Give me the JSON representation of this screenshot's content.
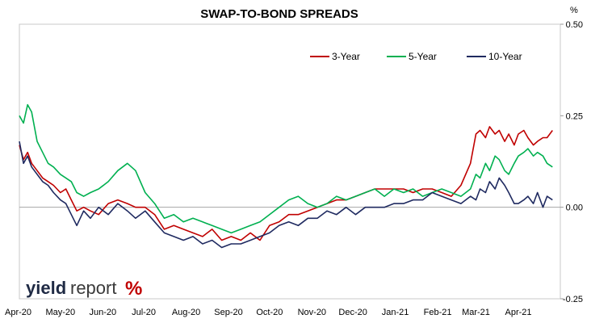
{
  "chart_data": {
    "type": "line",
    "title": "SWAP-TO-BOND SPREADS",
    "ylabel": "%",
    "ylim": [
      -0.25,
      0.5
    ],
    "yticks": [
      "0.50",
      "0.25",
      "0.00",
      "-0.25"
    ],
    "ytick_values": [
      0.5,
      0.25,
      0.0,
      -0.25
    ],
    "xlim": [
      "2020-04-01",
      "2021-04-30"
    ],
    "x_tick_labels": [
      "Apr-20",
      "May-20",
      "Jun-20",
      "Jul-20",
      "Aug-20",
      "Sep-20",
      "Oct-20",
      "Nov-20",
      "Dec-20",
      "Jan-21",
      "Feb-21",
      "Mar-21",
      "Apr-21"
    ],
    "x_tick_dates": [
      "2020-04-01",
      "2020-05-01",
      "2020-06-01",
      "2020-07-01",
      "2020-08-01",
      "2020-09-01",
      "2020-10-01",
      "2020-11-01",
      "2020-12-01",
      "2021-01-01",
      "2021-02-01",
      "2021-03-01",
      "2021-04-01"
    ],
    "grid": false,
    "legend_position": "top-right",
    "series": [
      {
        "name": "3-Year",
        "color": "#c00000",
        "points": [
          [
            "2020-04-01",
            0.17
          ],
          [
            "2020-04-04",
            0.13
          ],
          [
            "2020-04-07",
            0.15
          ],
          [
            "2020-04-10",
            0.12
          ],
          [
            "2020-04-14",
            0.1
          ],
          [
            "2020-04-18",
            0.08
          ],
          [
            "2020-04-22",
            0.07
          ],
          [
            "2020-04-26",
            0.06
          ],
          [
            "2020-05-01",
            0.04
          ],
          [
            "2020-05-05",
            0.05
          ],
          [
            "2020-05-09",
            0.02
          ],
          [
            "2020-05-13",
            -0.01
          ],
          [
            "2020-05-18",
            0.0
          ],
          [
            "2020-05-23",
            -0.01
          ],
          [
            "2020-05-29",
            -0.02
          ],
          [
            "2020-06-05",
            0.01
          ],
          [
            "2020-06-12",
            0.02
          ],
          [
            "2020-06-19",
            0.01
          ],
          [
            "2020-06-25",
            0.0
          ],
          [
            "2020-07-02",
            0.0
          ],
          [
            "2020-07-09",
            -0.02
          ],
          [
            "2020-07-16",
            -0.06
          ],
          [
            "2020-07-23",
            -0.05
          ],
          [
            "2020-07-30",
            -0.06
          ],
          [
            "2020-08-06",
            -0.07
          ],
          [
            "2020-08-13",
            -0.08
          ],
          [
            "2020-08-20",
            -0.06
          ],
          [
            "2020-08-27",
            -0.09
          ],
          [
            "2020-09-03",
            -0.08
          ],
          [
            "2020-09-10",
            -0.09
          ],
          [
            "2020-09-17",
            -0.07
          ],
          [
            "2020-09-24",
            -0.09
          ],
          [
            "2020-10-01",
            -0.05
          ],
          [
            "2020-10-08",
            -0.04
          ],
          [
            "2020-10-15",
            -0.02
          ],
          [
            "2020-10-22",
            -0.02
          ],
          [
            "2020-10-29",
            -0.01
          ],
          [
            "2020-11-05",
            0.0
          ],
          [
            "2020-11-12",
            0.01
          ],
          [
            "2020-11-19",
            0.02
          ],
          [
            "2020-11-26",
            0.02
          ],
          [
            "2020-12-03",
            0.03
          ],
          [
            "2020-12-10",
            0.04
          ],
          [
            "2020-12-17",
            0.05
          ],
          [
            "2020-12-24",
            0.05
          ],
          [
            "2020-12-31",
            0.05
          ],
          [
            "2021-01-07",
            0.05
          ],
          [
            "2021-01-14",
            0.04
          ],
          [
            "2021-01-21",
            0.05
          ],
          [
            "2021-01-28",
            0.05
          ],
          [
            "2021-02-04",
            0.04
          ],
          [
            "2021-02-11",
            0.03
          ],
          [
            "2021-02-18",
            0.06
          ],
          [
            "2021-02-25",
            0.12
          ],
          [
            "2021-03-01",
            0.2
          ],
          [
            "2021-03-04",
            0.21
          ],
          [
            "2021-03-08",
            0.19
          ],
          [
            "2021-03-11",
            0.22
          ],
          [
            "2021-03-15",
            0.2
          ],
          [
            "2021-03-18",
            0.21
          ],
          [
            "2021-03-22",
            0.18
          ],
          [
            "2021-03-25",
            0.2
          ],
          [
            "2021-03-29",
            0.17
          ],
          [
            "2021-04-01",
            0.2
          ],
          [
            "2021-04-05",
            0.21
          ],
          [
            "2021-04-08",
            0.19
          ],
          [
            "2021-04-12",
            0.17
          ],
          [
            "2021-04-15",
            0.18
          ],
          [
            "2021-04-19",
            0.19
          ],
          [
            "2021-04-22",
            0.19
          ],
          [
            "2021-04-26",
            0.21
          ]
        ]
      },
      {
        "name": "5-Year",
        "color": "#00b050",
        "points": [
          [
            "2020-04-01",
            0.25
          ],
          [
            "2020-04-04",
            0.23
          ],
          [
            "2020-04-07",
            0.28
          ],
          [
            "2020-04-10",
            0.26
          ],
          [
            "2020-04-14",
            0.18
          ],
          [
            "2020-04-18",
            0.15
          ],
          [
            "2020-04-22",
            0.12
          ],
          [
            "2020-04-26",
            0.11
          ],
          [
            "2020-05-01",
            0.09
          ],
          [
            "2020-05-05",
            0.08
          ],
          [
            "2020-05-09",
            0.07
          ],
          [
            "2020-05-13",
            0.04
          ],
          [
            "2020-05-18",
            0.03
          ],
          [
            "2020-05-23",
            0.04
          ],
          [
            "2020-05-29",
            0.05
          ],
          [
            "2020-06-05",
            0.07
          ],
          [
            "2020-06-12",
            0.1
          ],
          [
            "2020-06-19",
            0.12
          ],
          [
            "2020-06-25",
            0.1
          ],
          [
            "2020-07-02",
            0.04
          ],
          [
            "2020-07-09",
            0.01
          ],
          [
            "2020-07-16",
            -0.03
          ],
          [
            "2020-07-23",
            -0.02
          ],
          [
            "2020-07-30",
            -0.04
          ],
          [
            "2020-08-06",
            -0.03
          ],
          [
            "2020-08-13",
            -0.04
          ],
          [
            "2020-08-20",
            -0.05
          ],
          [
            "2020-08-27",
            -0.06
          ],
          [
            "2020-09-03",
            -0.07
          ],
          [
            "2020-09-10",
            -0.06
          ],
          [
            "2020-09-17",
            -0.05
          ],
          [
            "2020-09-24",
            -0.04
          ],
          [
            "2020-10-01",
            -0.02
          ],
          [
            "2020-10-08",
            0.0
          ],
          [
            "2020-10-15",
            0.02
          ],
          [
            "2020-10-22",
            0.03
          ],
          [
            "2020-10-29",
            0.01
          ],
          [
            "2020-11-05",
            0.0
          ],
          [
            "2020-11-12",
            0.01
          ],
          [
            "2020-11-19",
            0.03
          ],
          [
            "2020-11-26",
            0.02
          ],
          [
            "2020-12-03",
            0.03
          ],
          [
            "2020-12-10",
            0.04
          ],
          [
            "2020-12-17",
            0.05
          ],
          [
            "2020-12-24",
            0.03
          ],
          [
            "2020-12-31",
            0.05
          ],
          [
            "2021-01-07",
            0.04
          ],
          [
            "2021-01-14",
            0.05
          ],
          [
            "2021-01-21",
            0.03
          ],
          [
            "2021-01-28",
            0.04
          ],
          [
            "2021-02-04",
            0.05
          ],
          [
            "2021-02-11",
            0.04
          ],
          [
            "2021-02-18",
            0.03
          ],
          [
            "2021-02-25",
            0.05
          ],
          [
            "2021-03-01",
            0.09
          ],
          [
            "2021-03-04",
            0.08
          ],
          [
            "2021-03-08",
            0.12
          ],
          [
            "2021-03-11",
            0.1
          ],
          [
            "2021-03-15",
            0.14
          ],
          [
            "2021-03-18",
            0.13
          ],
          [
            "2021-03-22",
            0.1
          ],
          [
            "2021-03-25",
            0.09
          ],
          [
            "2021-03-29",
            0.12
          ],
          [
            "2021-04-01",
            0.14
          ],
          [
            "2021-04-05",
            0.15
          ],
          [
            "2021-04-08",
            0.16
          ],
          [
            "2021-04-12",
            0.14
          ],
          [
            "2021-04-15",
            0.15
          ],
          [
            "2021-04-19",
            0.14
          ],
          [
            "2021-04-22",
            0.12
          ],
          [
            "2021-04-26",
            0.11
          ]
        ]
      },
      {
        "name": "10-Year",
        "color": "#1f2a60",
        "points": [
          [
            "2020-04-01",
            0.18
          ],
          [
            "2020-04-04",
            0.12
          ],
          [
            "2020-04-07",
            0.14
          ],
          [
            "2020-04-10",
            0.11
          ],
          [
            "2020-04-14",
            0.09
          ],
          [
            "2020-04-18",
            0.07
          ],
          [
            "2020-04-22",
            0.06
          ],
          [
            "2020-04-26",
            0.04
          ],
          [
            "2020-05-01",
            0.02
          ],
          [
            "2020-05-05",
            0.01
          ],
          [
            "2020-05-09",
            -0.02
          ],
          [
            "2020-05-13",
            -0.05
          ],
          [
            "2020-05-18",
            -0.01
          ],
          [
            "2020-05-23",
            -0.03
          ],
          [
            "2020-05-29",
            0.0
          ],
          [
            "2020-06-05",
            -0.02
          ],
          [
            "2020-06-12",
            0.01
          ],
          [
            "2020-06-19",
            -0.01
          ],
          [
            "2020-06-25",
            -0.03
          ],
          [
            "2020-07-02",
            -0.01
          ],
          [
            "2020-07-09",
            -0.04
          ],
          [
            "2020-07-16",
            -0.07
          ],
          [
            "2020-07-23",
            -0.08
          ],
          [
            "2020-07-30",
            -0.09
          ],
          [
            "2020-08-06",
            -0.08
          ],
          [
            "2020-08-13",
            -0.1
          ],
          [
            "2020-08-20",
            -0.09
          ],
          [
            "2020-08-27",
            -0.11
          ],
          [
            "2020-09-03",
            -0.1
          ],
          [
            "2020-09-10",
            -0.1
          ],
          [
            "2020-09-17",
            -0.09
          ],
          [
            "2020-09-24",
            -0.08
          ],
          [
            "2020-10-01",
            -0.07
          ],
          [
            "2020-10-08",
            -0.05
          ],
          [
            "2020-10-15",
            -0.04
          ],
          [
            "2020-10-22",
            -0.05
          ],
          [
            "2020-10-29",
            -0.03
          ],
          [
            "2020-11-05",
            -0.03
          ],
          [
            "2020-11-12",
            -0.01
          ],
          [
            "2020-11-19",
            -0.02
          ],
          [
            "2020-11-26",
            0.0
          ],
          [
            "2020-12-03",
            -0.02
          ],
          [
            "2020-12-10",
            0.0
          ],
          [
            "2020-12-17",
            0.0
          ],
          [
            "2020-12-24",
            0.0
          ],
          [
            "2020-12-31",
            0.01
          ],
          [
            "2021-01-07",
            0.01
          ],
          [
            "2021-01-14",
            0.02
          ],
          [
            "2021-01-21",
            0.02
          ],
          [
            "2021-01-28",
            0.04
          ],
          [
            "2021-02-04",
            0.03
          ],
          [
            "2021-02-11",
            0.02
          ],
          [
            "2021-02-18",
            0.01
          ],
          [
            "2021-02-25",
            0.03
          ],
          [
            "2021-03-01",
            0.02
          ],
          [
            "2021-03-04",
            0.05
          ],
          [
            "2021-03-08",
            0.04
          ],
          [
            "2021-03-11",
            0.07
          ],
          [
            "2021-03-15",
            0.05
          ],
          [
            "2021-03-18",
            0.08
          ],
          [
            "2021-03-22",
            0.06
          ],
          [
            "2021-03-25",
            0.04
          ],
          [
            "2021-03-29",
            0.01
          ],
          [
            "2021-04-01",
            0.01
          ],
          [
            "2021-04-05",
            0.02
          ],
          [
            "2021-04-08",
            0.03
          ],
          [
            "2021-04-12",
            0.01
          ],
          [
            "2021-04-15",
            0.04
          ],
          [
            "2021-04-19",
            0.0
          ],
          [
            "2021-04-22",
            0.03
          ],
          [
            "2021-04-26",
            0.02
          ]
        ]
      }
    ]
  },
  "logo": {
    "word_bold": "yield",
    "word_light": "report",
    "symbol": "%"
  }
}
